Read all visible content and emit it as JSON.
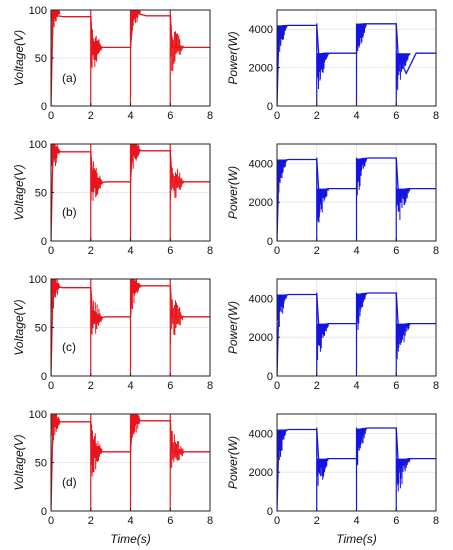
{
  "chart_data": [
    {
      "type": "line",
      "panel": "(a)",
      "signal": "voltage",
      "ylabel": "Voltage(V)",
      "xlabel": "",
      "xlim": [
        0,
        8
      ],
      "ylim": [
        0,
        100
      ],
      "xticks": [
        0,
        2,
        4,
        6,
        8
      ],
      "yticks": [
        0,
        50,
        100
      ],
      "color": "#e8141b",
      "series": [
        {
          "x": [
            0,
            0.1,
            0.2,
            0.35,
            0.6,
            1,
            2,
            2.1,
            2.3,
            2.6,
            3,
            4,
            4.15,
            4.4,
            4.8,
            5.5,
            6,
            6.1,
            6.3,
            6.6,
            7,
            8
          ],
          "y": [
            0,
            99,
            97,
            94,
            93,
            93,
            93,
            61,
            61,
            61,
            61,
            61,
            98,
            96,
            94,
            94,
            94,
            61,
            61,
            61,
            61,
            61
          ]
        }
      ]
    },
    {
      "type": "line",
      "panel": "(a)",
      "signal": "power",
      "ylabel": "Power(W)",
      "xlabel": "",
      "xlim": [
        0,
        8
      ],
      "ylim": [
        0,
        5000
      ],
      "xticks": [
        0,
        2,
        4,
        6,
        8
      ],
      "yticks": [
        0,
        2000,
        4000
      ],
      "color": "#1414e0",
      "series": [
        {
          "x": [
            0,
            0.1,
            0.3,
            0.6,
            1,
            2,
            2.1,
            2.4,
            2.8,
            3,
            4,
            4.1,
            4.4,
            4.8,
            5.5,
            6,
            6.1,
            6.5,
            7,
            8
          ],
          "y": [
            0,
            4100,
            4180,
            4200,
            4200,
            4200,
            2700,
            2750,
            2750,
            2750,
            2750,
            4250,
            4280,
            4280,
            4280,
            4280,
            2600,
            1700,
            2750,
            2750
          ]
        }
      ]
    },
    {
      "type": "line",
      "panel": "(b)",
      "signal": "voltage",
      "ylabel": "Voltage(V)",
      "xlabel": "",
      "xlim": [
        0,
        8
      ],
      "ylim": [
        0,
        100
      ],
      "xticks": [
        0,
        2,
        4,
        6,
        8
      ],
      "yticks": [
        0,
        50,
        100
      ],
      "color": "#e8141b",
      "series": [
        {
          "x": [
            0,
            0.1,
            0.25,
            0.5,
            1,
            2,
            2.1,
            2.4,
            2.8,
            3,
            4,
            4.1,
            4.3,
            4.6,
            5,
            6,
            6.1,
            6.3,
            6.6,
            7,
            8
          ],
          "y": [
            0,
            95,
            93,
            92,
            92,
            92,
            61,
            60,
            61,
            61,
            61,
            95,
            94,
            93,
            93,
            93,
            61,
            61,
            61,
            61,
            61
          ]
        }
      ]
    },
    {
      "type": "line",
      "panel": "(b)",
      "signal": "power",
      "ylabel": "Power(W)",
      "xlabel": "",
      "xlim": [
        0,
        8
      ],
      "ylim": [
        0,
        5000
      ],
      "xticks": [
        0,
        2,
        4,
        6,
        8
      ],
      "yticks": [
        0,
        2000,
        4000
      ],
      "color": "#1414e0",
      "series": [
        {
          "x": [
            0,
            0.1,
            0.3,
            0.6,
            1,
            2,
            2.1,
            2.3,
            2.6,
            3,
            4,
            4.1,
            4.3,
            4.6,
            5,
            6,
            6.1,
            6.3,
            6.6,
            7,
            8
          ],
          "y": [
            0,
            4000,
            4150,
            4200,
            4200,
            4200,
            2600,
            2650,
            2700,
            2700,
            2700,
            4200,
            4250,
            4280,
            4280,
            4280,
            2600,
            2650,
            2700,
            2700,
            2700
          ]
        }
      ]
    },
    {
      "type": "line",
      "panel": "(c)",
      "signal": "voltage",
      "ylabel": "Voltage(V)",
      "xlabel": "",
      "xlim": [
        0,
        8
      ],
      "ylim": [
        0,
        100
      ],
      "xticks": [
        0,
        2,
        4,
        6,
        8
      ],
      "yticks": [
        0,
        50,
        100
      ],
      "color": "#e8141b",
      "series": [
        {
          "x": [
            0,
            0.1,
            0.3,
            0.6,
            1,
            2,
            2.1,
            2.4,
            2.8,
            3,
            4,
            4.1,
            4.3,
            4.6,
            5,
            6,
            6.1,
            6.3,
            6.6,
            7,
            8
          ],
          "y": [
            0,
            94,
            92,
            91,
            91,
            91,
            61,
            60,
            61,
            61,
            61,
            95,
            93,
            93,
            93,
            93,
            61,
            61,
            61,
            61,
            61
          ]
        }
      ]
    },
    {
      "type": "line",
      "panel": "(c)",
      "signal": "power",
      "ylabel": "Power(W)",
      "xlabel": "",
      "xlim": [
        0,
        8
      ],
      "ylim": [
        0,
        5000
      ],
      "xticks": [
        0,
        2,
        4,
        6,
        8
      ],
      "yticks": [
        0,
        2000,
        4000
      ],
      "color": "#1414e0",
      "series": [
        {
          "x": [
            0,
            0.1,
            0.3,
            0.6,
            1,
            2,
            2.1,
            2.3,
            2.6,
            3,
            4,
            4.1,
            4.3,
            4.6,
            5,
            6,
            6.1,
            6.3,
            6.6,
            7,
            8
          ],
          "y": [
            0,
            4000,
            4150,
            4200,
            4200,
            4200,
            2600,
            2650,
            2700,
            2700,
            2700,
            4200,
            4250,
            4280,
            4280,
            4280,
            2600,
            2650,
            2700,
            2700,
            2700
          ]
        }
      ]
    },
    {
      "type": "line",
      "panel": "(d)",
      "signal": "voltage",
      "ylabel": "Voltage(V)",
      "xlabel": "Time(s)",
      "xlim": [
        0,
        8
      ],
      "ylim": [
        0,
        100
      ],
      "xticks": [
        0,
        2,
        4,
        6,
        8
      ],
      "yticks": [
        0,
        50,
        100
      ],
      "color": "#e8141b",
      "series": [
        {
          "x": [
            0,
            0.1,
            0.3,
            0.6,
            1,
            2,
            2.1,
            2.4,
            2.8,
            3,
            4,
            4.1,
            4.3,
            4.6,
            5,
            6,
            6.1,
            6.3,
            6.6,
            7,
            8
          ],
          "y": [
            0,
            94,
            92,
            92,
            92,
            92,
            61,
            61,
            61,
            61,
            61,
            94,
            93,
            93,
            93,
            93,
            61,
            61,
            61,
            61,
            61
          ]
        }
      ]
    },
    {
      "type": "line",
      "panel": "(d)",
      "signal": "power",
      "ylabel": "Power(W)",
      "xlabel": "Time(s)",
      "xlim": [
        0,
        8
      ],
      "ylim": [
        0,
        5000
      ],
      "xticks": [
        0,
        2,
        4,
        6,
        8
      ],
      "yticks": [
        0,
        2000,
        4000
      ],
      "color": "#1414e0",
      "series": [
        {
          "x": [
            0,
            0.1,
            0.3,
            0.6,
            1,
            2,
            2.1,
            2.3,
            2.6,
            3,
            4,
            4.1,
            4.3,
            4.6,
            5,
            6,
            6.1,
            6.3,
            6.6,
            7,
            8
          ],
          "y": [
            0,
            4000,
            4150,
            4200,
            4200,
            4200,
            2600,
            2650,
            2700,
            2700,
            2700,
            4200,
            4250,
            4280,
            4280,
            4280,
            2500,
            2600,
            2700,
            2700,
            2700
          ]
        }
      ]
    }
  ]
}
